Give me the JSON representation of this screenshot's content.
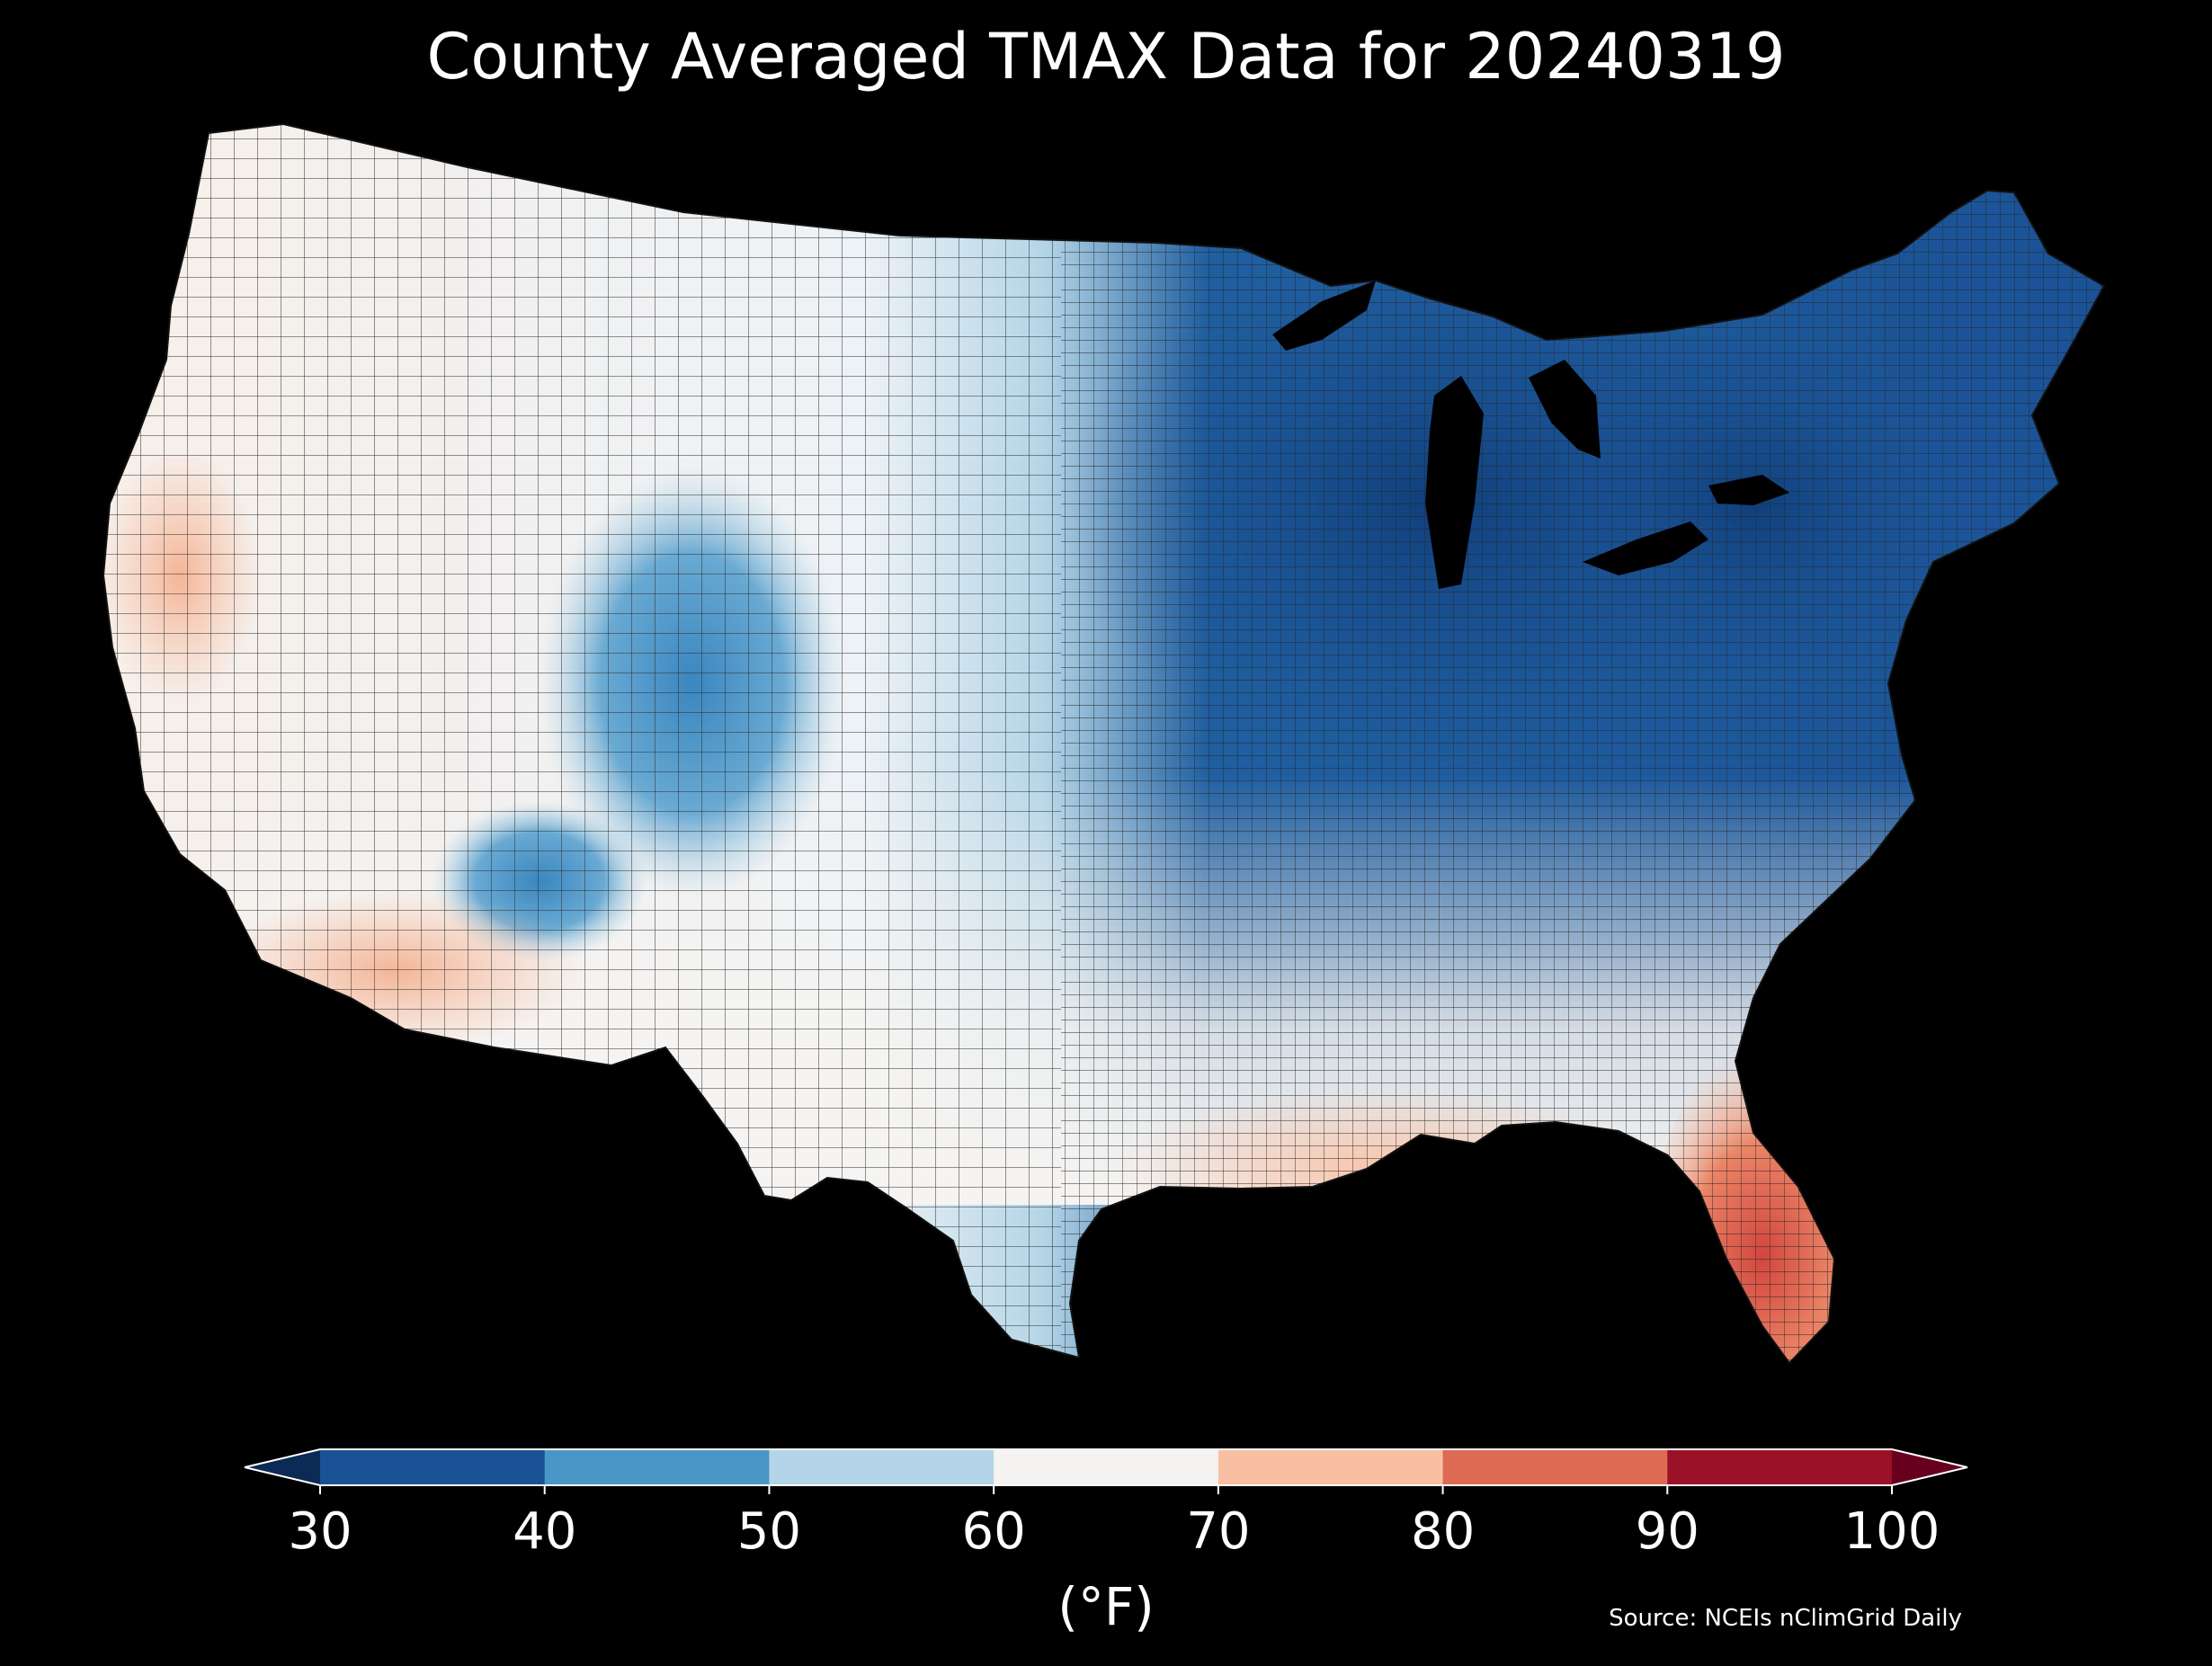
{
  "title": "County Averaged TMAX Data for 20240319",
  "colorbar": {
    "ticks": [
      "30",
      "40",
      "50",
      "60",
      "70",
      "80",
      "90",
      "100"
    ],
    "unit": "(°F)",
    "min": 30,
    "max": 100,
    "step": 10,
    "extend": "both",
    "under_color": "#0b2a55",
    "over_color": "#67001f",
    "bin_colors": [
      "#1a5296",
      "#4a96c6",
      "#b4d5e7",
      "#f6f4f2",
      "#f9bfa2",
      "#dd6a52",
      "#9b1128"
    ],
    "outline_color": "#ffffff"
  },
  "source": "Source: NCEIs nClimGrid Daily",
  "map": {
    "region": "Contiguous United States",
    "variable": "TMAX",
    "date": "20240319",
    "unit": "°F",
    "background": "#000000",
    "county_border_color": "#333333"
  }
}
